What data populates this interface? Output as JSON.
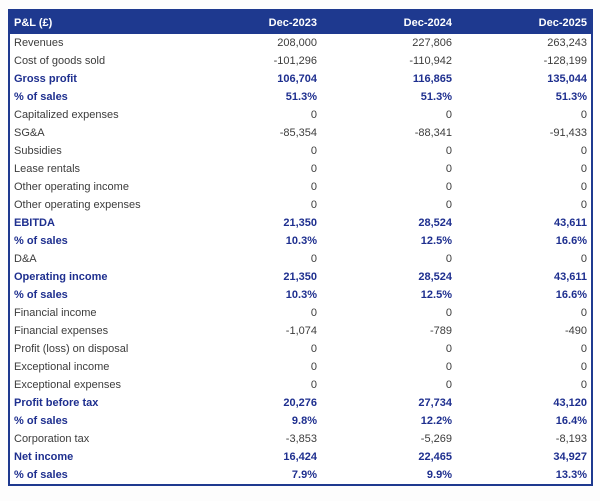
{
  "table": {
    "title": "P&L (£)",
    "columns": [
      "Dec-2023",
      "Dec-2024",
      "Dec-2025"
    ],
    "rows": [
      {
        "label": "Revenues",
        "values": [
          "208,000",
          "227,806",
          "263,243"
        ],
        "emphasis": false
      },
      {
        "label": "Cost of goods sold",
        "values": [
          "-101,296",
          "-110,942",
          "-128,199"
        ],
        "emphasis": false
      },
      {
        "label": "Gross profit",
        "values": [
          "106,704",
          "116,865",
          "135,044"
        ],
        "emphasis": true
      },
      {
        "label": "% of sales",
        "values": [
          "51.3%",
          "51.3%",
          "51.3%"
        ],
        "emphasis": true
      },
      {
        "label": "Capitalized expenses",
        "values": [
          "0",
          "0",
          "0"
        ],
        "emphasis": false
      },
      {
        "label": "SG&A",
        "values": [
          "-85,354",
          "-88,341",
          "-91,433"
        ],
        "emphasis": false
      },
      {
        "label": "Subsidies",
        "values": [
          "0",
          "0",
          "0"
        ],
        "emphasis": false
      },
      {
        "label": "Lease rentals",
        "values": [
          "0",
          "0",
          "0"
        ],
        "emphasis": false
      },
      {
        "label": "Other operating income",
        "values": [
          "0",
          "0",
          "0"
        ],
        "emphasis": false
      },
      {
        "label": "Other operating expenses",
        "values": [
          "0",
          "0",
          "0"
        ],
        "emphasis": false
      },
      {
        "label": "EBITDA",
        "values": [
          "21,350",
          "28,524",
          "43,611"
        ],
        "emphasis": true
      },
      {
        "label": "% of sales",
        "values": [
          "10.3%",
          "12.5%",
          "16.6%"
        ],
        "emphasis": true
      },
      {
        "label": "D&A",
        "values": [
          "0",
          "0",
          "0"
        ],
        "emphasis": false
      },
      {
        "label": "Operating income",
        "values": [
          "21,350",
          "28,524",
          "43,611"
        ],
        "emphasis": true
      },
      {
        "label": "% of sales",
        "values": [
          "10.3%",
          "12.5%",
          "16.6%"
        ],
        "emphasis": true
      },
      {
        "label": "Financial income",
        "values": [
          "0",
          "0",
          "0"
        ],
        "emphasis": false
      },
      {
        "label": "Financial expenses",
        "values": [
          "-1,074",
          "-789",
          "-490"
        ],
        "emphasis": false
      },
      {
        "label": "Profit (loss) on disposal",
        "values": [
          "0",
          "0",
          "0"
        ],
        "emphasis": false
      },
      {
        "label": "Exceptional income",
        "values": [
          "0",
          "0",
          "0"
        ],
        "emphasis": false
      },
      {
        "label": "Exceptional expenses",
        "values": [
          "0",
          "0",
          "0"
        ],
        "emphasis": false
      },
      {
        "label": "Profit before tax",
        "values": [
          "20,276",
          "27,734",
          "43,120"
        ],
        "emphasis": true
      },
      {
        "label": "% of sales",
        "values": [
          "9.8%",
          "12.2%",
          "16.4%"
        ],
        "emphasis": true
      },
      {
        "label": "Corporation tax",
        "values": [
          "-3,853",
          "-5,269",
          "-8,193"
        ],
        "emphasis": false
      },
      {
        "label": "Net income",
        "values": [
          "16,424",
          "22,465",
          "34,927"
        ],
        "emphasis": true
      },
      {
        "label": "% of sales",
        "values": [
          "7.9%",
          "9.9%",
          "13.3%"
        ],
        "emphasis": true
      }
    ],
    "colors": {
      "header_bg": "#1e398f",
      "header_text": "#ffffff",
      "accent_text": "#1e2f8f",
      "body_text": "#3c3c3c",
      "border": "#1e398f"
    }
  }
}
